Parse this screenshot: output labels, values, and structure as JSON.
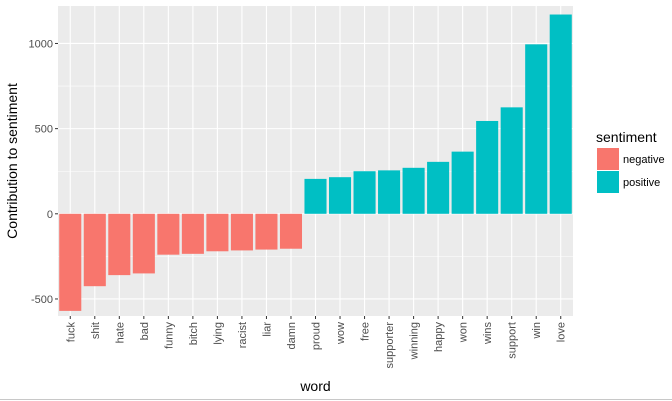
{
  "chart_data": {
    "type": "bar",
    "xlabel": "word",
    "ylabel": "Contribution to sentiment",
    "ylim": [
      -600,
      1220
    ],
    "yticks": [
      -500,
      0,
      500,
      1000
    ],
    "grid": true,
    "legend": {
      "title": "sentiment",
      "placement": "right"
    },
    "categories": [
      "fuck",
      "shit",
      "hate",
      "bad",
      "funny",
      "bitch",
      "lying",
      "racist",
      "liar",
      "damn",
      "proud",
      "wow",
      "free",
      "supporter",
      "winning",
      "happy",
      "won",
      "wins",
      "support",
      "win",
      "love"
    ],
    "values": [
      -570,
      -425,
      -360,
      -350,
      -240,
      -235,
      -220,
      -215,
      -210,
      -205,
      205,
      215,
      250,
      255,
      270,
      305,
      365,
      545,
      625,
      995,
      1170
    ],
    "sentiment": [
      "negative",
      "negative",
      "negative",
      "negative",
      "negative",
      "negative",
      "negative",
      "negative",
      "negative",
      "negative",
      "positive",
      "positive",
      "positive",
      "positive",
      "positive",
      "positive",
      "positive",
      "positive",
      "positive",
      "positive",
      "positive"
    ],
    "series": [
      {
        "name": "negative",
        "color": "#f8766d"
      },
      {
        "name": "positive",
        "color": "#00bfc4"
      }
    ]
  }
}
